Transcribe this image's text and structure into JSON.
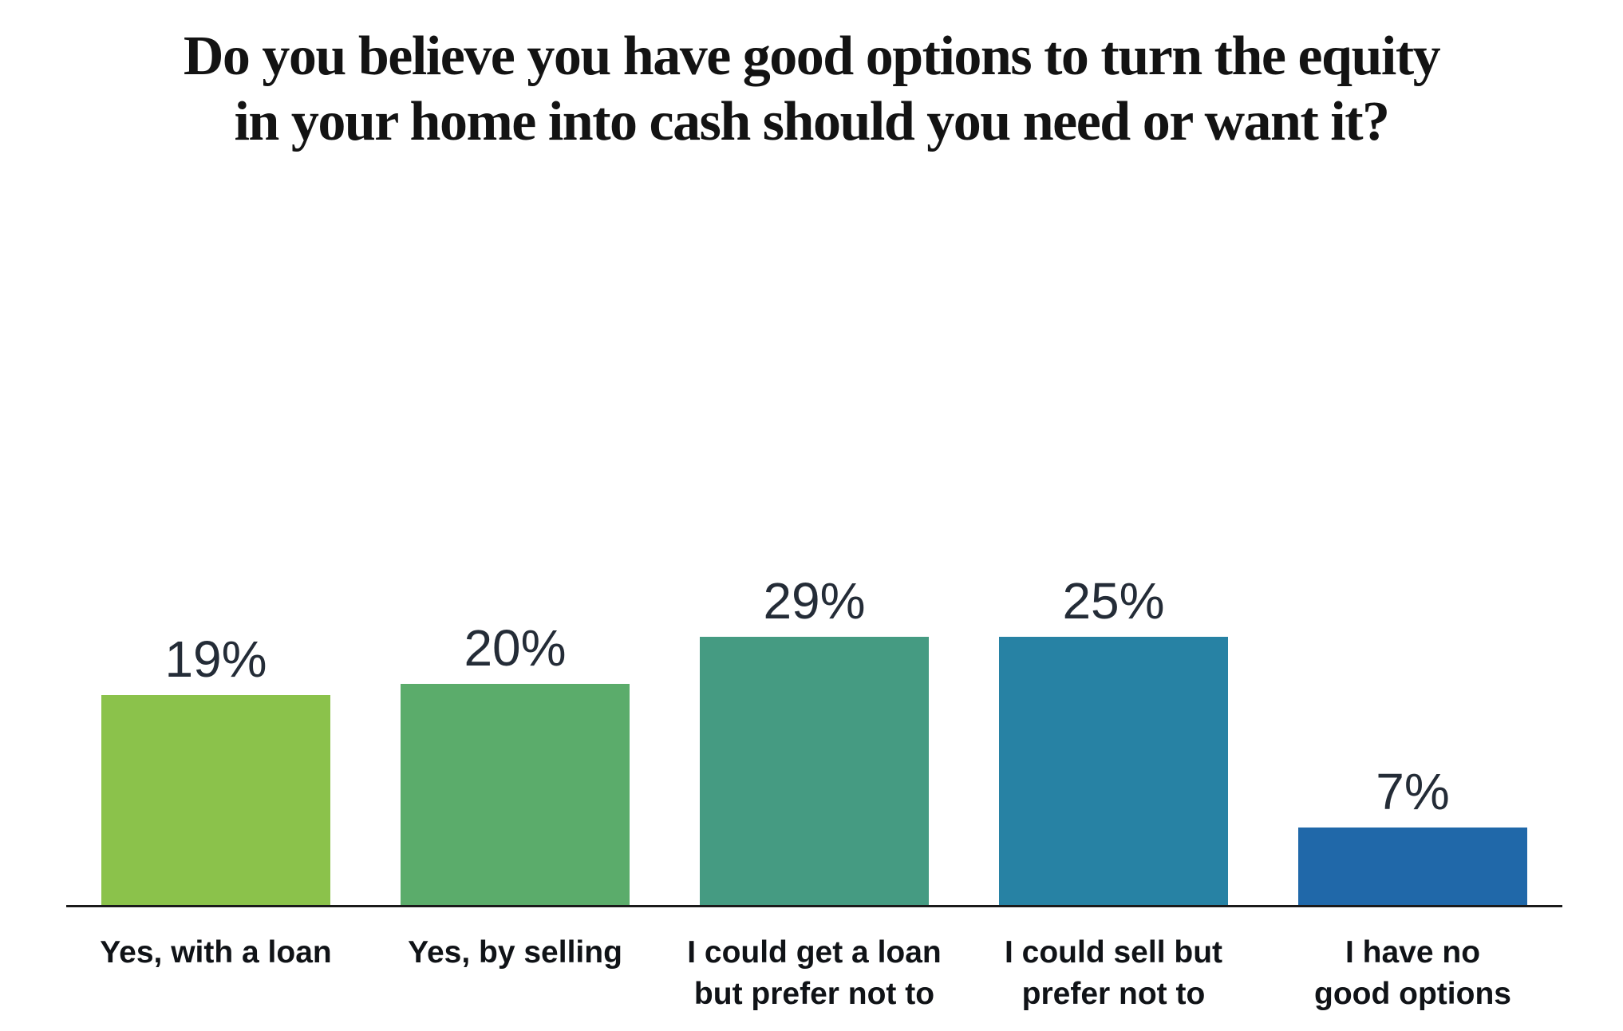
{
  "title": {
    "line1": "Do you believe you have good options to turn the equity",
    "line2": "in your home into cash should you need or want it?"
  },
  "chart_data": {
    "type": "bar",
    "title": "Do you believe you have good options to turn the equity in your home into cash should you need or want it?",
    "categories": [
      "Yes, with a loan",
      "Yes, by selling",
      "I could get a loan but prefer not to",
      "I could sell but prefer not to",
      "I have no good options"
    ],
    "category_lines": [
      [
        "Yes, with a loan"
      ],
      [
        "Yes, by selling"
      ],
      [
        "I could get a loan",
        "but prefer not to"
      ],
      [
        "I could sell but",
        "prefer not to"
      ],
      [
        "I have no",
        "good options"
      ]
    ],
    "values": [
      19,
      20,
      29,
      25,
      7
    ],
    "data_labels": [
      "19%",
      "20%",
      "29%",
      "25%",
      "7%"
    ],
    "unit": "%",
    "bar_colors": [
      "#8BC24B",
      "#5BAC6B",
      "#459B82",
      "#2782A4",
      "#2068A9"
    ],
    "value_label_color": "#242C37",
    "category_label_color": "#101317",
    "axis_color": "#1a1a1a",
    "ylim": [
      0,
      30
    ],
    "grid": false,
    "legend": false,
    "xlabel": "",
    "ylabel": ""
  }
}
